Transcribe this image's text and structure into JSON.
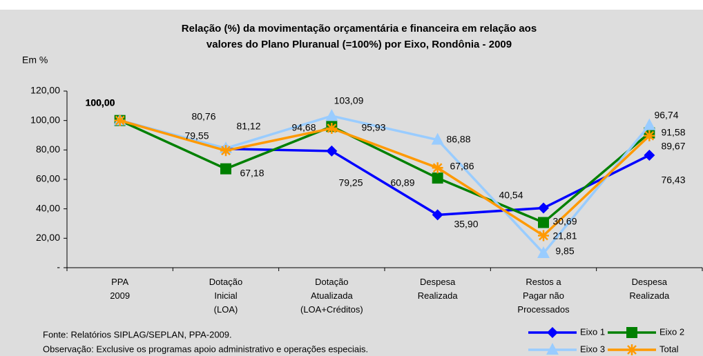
{
  "chart_data": {
    "type": "line",
    "title": [
      "Relação (%) da movimentação orçamentária e financeira em relação aos",
      "valores do Plano Pluranual (=100%) por Eixo, Rondônia - 2009"
    ],
    "y_label": "Em %",
    "categories": [
      [
        "PPA",
        "2009"
      ],
      [
        "Dotação",
        "Inicial",
        "(LOA)"
      ],
      [
        "Dotação",
        "Atualizada",
        "(LOA+Créditos)"
      ],
      [
        "Despesa",
        "Realizada"
      ],
      [
        "Restos a",
        "Pagar não",
        "Processados"
      ],
      [
        "Despesa",
        "Realizada"
      ]
    ],
    "ylim": [
      0,
      120
    ],
    "yticks": [
      {
        "value": 0,
        "label": "-"
      },
      {
        "value": 20,
        "label": "20,00"
      },
      {
        "value": 40,
        "label": "40,00"
      },
      {
        "value": 60,
        "label": "60,00"
      },
      {
        "value": 80,
        "label": "80,00"
      },
      {
        "value": 100,
        "label": "100,00"
      },
      {
        "value": 120,
        "label": "120,00"
      }
    ],
    "series": [
      {
        "name": "Eixo 1",
        "color": "#0000ff",
        "marker": "diamond",
        "values": [
          100,
          80.76,
          79.25,
          35.9,
          40.54,
          76.43
        ],
        "value_labels": [
          "100,00",
          "80,76",
          "79,25",
          "35,90",
          "40,54",
          "76,43"
        ]
      },
      {
        "name": "Eixo 2",
        "color": "#008000",
        "marker": "square",
        "values": [
          100,
          67.18,
          95.93,
          60.89,
          30.69,
          91.58
        ],
        "value_labels": [
          "100,00",
          "67,18",
          "95,93",
          "60,89",
          "30,69",
          "91,58"
        ]
      },
      {
        "name": "Eixo 3",
        "color": "#99ccff",
        "marker": "triangle",
        "values": [
          100,
          81.12,
          103.09,
          86.88,
          9.85,
          96.74
        ],
        "value_labels": [
          "100,00",
          "81,12",
          "103,09",
          "86,88",
          "9,85",
          "96,74"
        ]
      },
      {
        "name": "Total",
        "color": "#ff9900",
        "marker": "asterisk",
        "values": [
          100,
          79.55,
          94.68,
          67.86,
          21.81,
          89.67
        ],
        "value_labels": [
          "100,00",
          "79,55",
          "94,68",
          "67,86",
          "21,81",
          "89,67"
        ]
      }
    ],
    "notes": [
      "Fonte: Relatórios SIPLAG/SEPLAN, PPA-2009.",
      "Observação: Exclusive os programas apoio administrativo e operações especiais."
    ]
  }
}
